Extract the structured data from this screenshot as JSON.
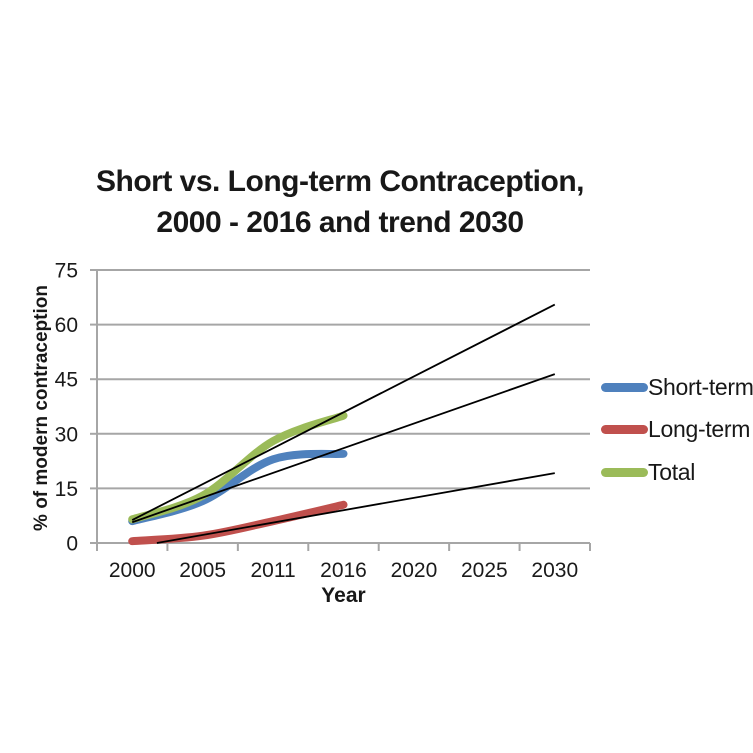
{
  "title": {
    "line1": "Short vs. Long-term Contraception,",
    "line2": "2000 - 2016 and trend 2030"
  },
  "chart_data": {
    "type": "line",
    "title": "Short vs. Long-term Contraception, 2000 - 2016 and trend 2030",
    "xlabel": "Year",
    "ylabel": "% of modern contraception",
    "categories": [
      "2000",
      "2005",
      "2011",
      "2016",
      "2020",
      "2025",
      "2030"
    ],
    "y_ticks": [
      0,
      15,
      30,
      45,
      60,
      75
    ],
    "ylim": [
      0,
      75
    ],
    "grid": "horizontal",
    "legend_position": "right",
    "series": [
      {
        "name": "Short-term",
        "color": "#4F81BD",
        "x": [
          "2000",
          "2005",
          "2011",
          "2016"
        ],
        "values": [
          6,
          11.5,
          23,
          24.5
        ],
        "style": "thick-smooth"
      },
      {
        "name": "Long-term",
        "color": "#C0504D",
        "x": [
          "2000",
          "2005",
          "2011",
          "2016"
        ],
        "values": [
          0.5,
          2,
          6,
          10.5
        ],
        "style": "thick-smooth"
      },
      {
        "name": "Total",
        "color": "#9BBB59",
        "x": [
          "2000",
          "2005",
          "2011",
          "2016"
        ],
        "values": [
          6.5,
          13,
          28,
          35
        ],
        "style": "thick-smooth"
      }
    ],
    "trend_lines": [
      {
        "name": "total-trend",
        "color": "#000000",
        "points": [
          {
            "ci": 0,
            "v": 6.3
          },
          {
            "ci": 6,
            "v": 65.5
          }
        ]
      },
      {
        "name": "short-term-trend",
        "color": "#000000",
        "points": [
          {
            "ci": 0,
            "v": 5.7
          },
          {
            "ci": 6,
            "v": 46.4
          }
        ]
      },
      {
        "name": "long-term-trend",
        "color": "#000000",
        "points": [
          {
            "ci": 0.35,
            "v": 0
          },
          {
            "ci": 6,
            "v": 19.2
          }
        ]
      }
    ]
  },
  "legend": {
    "items": [
      {
        "label": "Short-term",
        "color": "#4F81BD"
      },
      {
        "label": "Long-term",
        "color": "#C0504D"
      },
      {
        "label": "Total",
        "color": "#9BBB59"
      }
    ]
  },
  "colors": {
    "gridline": "#A6A6A6",
    "axis": "#A6A6A6",
    "trend": "#000000",
    "text": "#1a1a1a",
    "background": "#ffffff"
  }
}
